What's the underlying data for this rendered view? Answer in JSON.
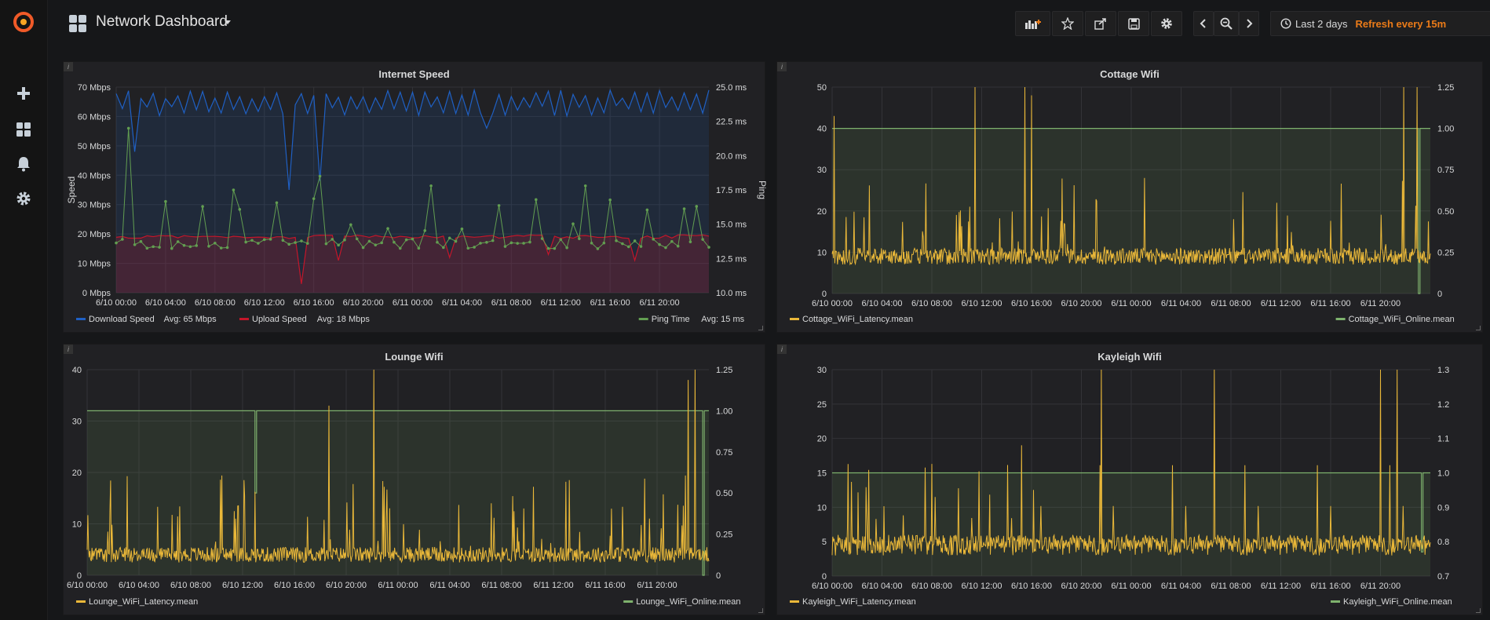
{
  "sidemenu": {
    "logo_icon": "grafana-logo-icon",
    "items": [
      {
        "icon": "plus-icon"
      },
      {
        "icon": "dashboards-icon"
      },
      {
        "icon": "bell-icon"
      },
      {
        "icon": "gear-icon"
      }
    ]
  },
  "header": {
    "title": "Network Dashboard",
    "time_range": "Last 2 days",
    "refresh": "Refresh every 15m",
    "refresh_color": "#eb7b18"
  },
  "colors": {
    "download": "#1f60c4",
    "upload": "#c4162a",
    "ping": "#629e51",
    "latency": "#eab839",
    "online": "#7eb26d",
    "background": "#161719",
    "panel": "#212124"
  },
  "panels": [
    {
      "title": "Internet Speed",
      "legend": [
        {
          "color": "#1f60c4",
          "label": "Download Speed",
          "stat": "Avg: 65 Mbps"
        },
        {
          "color": "#c4162a",
          "label": "Upload Speed",
          "stat": "Avg: 18 Mbps"
        },
        {
          "color": "#629e51",
          "label": "Ping Time",
          "stat": "Avg: 15 ms"
        }
      ]
    },
    {
      "title": "Cottage Wifi",
      "legend": [
        {
          "color": "#eab839",
          "label": "Cottage_WiFi_Latency.mean"
        },
        {
          "color": "#7eb26d",
          "label": "Cottage_WiFi_Online.mean"
        }
      ]
    },
    {
      "title": "Lounge Wifi",
      "legend": [
        {
          "color": "#eab839",
          "label": "Lounge_WiFi_Latency.mean"
        },
        {
          "color": "#7eb26d",
          "label": "Lounge_WiFi_Online.mean"
        }
      ]
    },
    {
      "title": "Kayleigh Wifi",
      "legend": [
        {
          "color": "#eab839",
          "label": "Kayleigh_WiFi_Latency.mean"
        },
        {
          "color": "#7eb26d",
          "label": "Kayleigh_WiFi_Online.mean"
        }
      ]
    }
  ],
  "chart_data": [
    {
      "type": "line",
      "title": "Internet Speed",
      "x_ticks": [
        "6/10 00:00",
        "6/10 04:00",
        "6/10 08:00",
        "6/10 12:00",
        "6/10 16:00",
        "6/10 20:00",
        "6/11 00:00",
        "6/11 04:00",
        "6/11 08:00",
        "6/11 12:00",
        "6/11 16:00",
        "6/11 20:00"
      ],
      "x_range_hours": [
        0,
        48
      ],
      "y_left": {
        "label": "Speed",
        "ticks": [
          "0 Mbps",
          "10 Mbps",
          "20 Mbps",
          "30 Mbps",
          "40 Mbps",
          "50 Mbps",
          "60 Mbps",
          "70 Mbps"
        ],
        "range": [
          0,
          70
        ]
      },
      "y_right": {
        "label": "Ping",
        "ticks": [
          "10.0 ms",
          "12.5 ms",
          "15.0 ms",
          "17.5 ms",
          "20.0 ms",
          "22.5 ms",
          "25.0 ms"
        ],
        "range": [
          10,
          25
        ]
      },
      "series": [
        {
          "name": "Download Speed",
          "axis": "left",
          "typical": 66,
          "dips_to": [
            48,
            35,
            55
          ],
          "avg": 65
        },
        {
          "name": "Upload Speed",
          "axis": "left",
          "typical": 19,
          "dips_to": [
            3,
            11,
            12
          ],
          "avg": 18
        },
        {
          "name": "Ping Time",
          "axis": "right",
          "typical": 13.5,
          "spikes_to": [
            22.0,
            18.5,
            17.8,
            16.5
          ],
          "avg": 15
        }
      ],
      "grid": true,
      "legend_position": "bottom"
    },
    {
      "type": "line",
      "title": "Cottage Wifi",
      "x_ticks": [
        "6/10 00:00",
        "6/10 04:00",
        "6/10 08:00",
        "6/10 12:00",
        "6/10 16:00",
        "6/10 20:00",
        "6/11 00:00",
        "6/11 04:00",
        "6/11 08:00",
        "6/11 12:00",
        "6/11 16:00",
        "6/11 20:00"
      ],
      "x_range_hours": [
        0,
        48
      ],
      "y_left": {
        "ticks": [
          "0",
          "10",
          "20",
          "30",
          "40",
          "50"
        ],
        "range": [
          0,
          50
        ]
      },
      "y_right": {
        "ticks": [
          "0",
          "0.25",
          "0.50",
          "0.75",
          "1.00",
          "1.25"
        ],
        "range": [
          0,
          1.25
        ]
      },
      "series": [
        {
          "name": "Cottage_WiFi_Latency.mean",
          "axis": "left",
          "baseline": 9,
          "spikes_to": [
            50,
            50,
            48,
            50,
            50
          ]
        },
        {
          "name": "Cottage_WiFi_Online.mean",
          "axis": "right",
          "value": 1.0
        }
      ],
      "grid": true,
      "legend_position": "bottom"
    },
    {
      "type": "line",
      "title": "Lounge Wifi",
      "x_ticks": [
        "6/10 00:00",
        "6/10 04:00",
        "6/10 08:00",
        "6/10 12:00",
        "6/10 16:00",
        "6/10 20:00",
        "6/11 00:00",
        "6/11 04:00",
        "6/11 08:00",
        "6/11 12:00",
        "6/11 16:00",
        "6/11 20:00"
      ],
      "x_range_hours": [
        0,
        48
      ],
      "y_left": {
        "ticks": [
          "0",
          "10",
          "20",
          "30",
          "40"
        ],
        "range": [
          0,
          40
        ]
      },
      "y_right": {
        "ticks": [
          "0",
          "0.25",
          "0.50",
          "0.75",
          "1.00",
          "1.25"
        ],
        "range": [
          0,
          1.25
        ]
      },
      "series": [
        {
          "name": "Lounge_WiFi_Latency.mean",
          "axis": "left",
          "baseline": 4,
          "spikes_to": [
            40,
            33,
            40,
            20
          ]
        },
        {
          "name": "Lounge_WiFi_Online.mean",
          "axis": "right",
          "value": 1.0
        }
      ],
      "grid": true,
      "legend_position": "bottom"
    },
    {
      "type": "line",
      "title": "Kayleigh Wifi",
      "x_ticks": [
        "6/10 00:00",
        "6/10 04:00",
        "6/10 08:00",
        "6/10 12:00",
        "6/10 16:00",
        "6/10 20:00",
        "6/11 00:00",
        "6/11 04:00",
        "6/11 08:00",
        "6/11 12:00",
        "6/11 16:00",
        "6/11 20:00"
      ],
      "x_range_hours": [
        0,
        48
      ],
      "y_left": {
        "ticks": [
          "0",
          "5",
          "10",
          "15",
          "20",
          "25",
          "30"
        ],
        "range": [
          0,
          30
        ]
      },
      "y_right": {
        "ticks": [
          "0.7",
          "0.8",
          "0.9",
          "1.0",
          "1.1",
          "1.2",
          "1.3"
        ],
        "range": [
          0.7,
          1.3
        ]
      },
      "series": [
        {
          "name": "Kayleigh_WiFi_Latency.mean",
          "axis": "left",
          "baseline": 4,
          "spikes_to": [
            30,
            30,
            30,
            30
          ]
        },
        {
          "name": "Kayleigh_WiFi_Online.mean",
          "axis": "right",
          "value": 1.0
        }
      ],
      "grid": true,
      "legend_position": "bottom"
    }
  ]
}
